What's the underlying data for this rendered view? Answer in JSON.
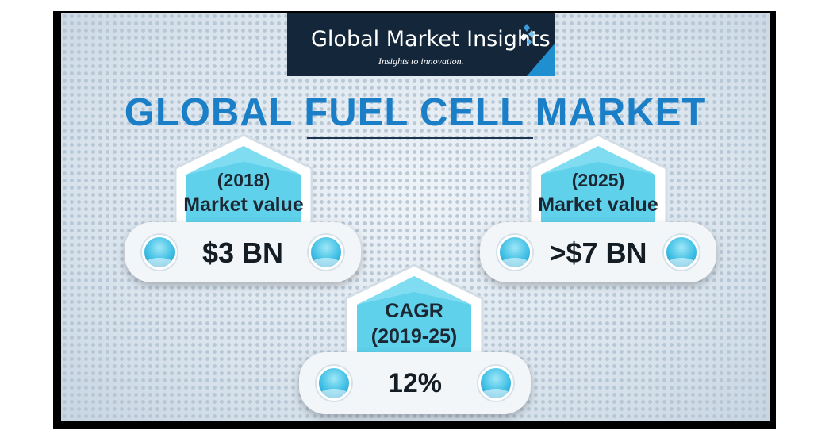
{
  "logo": {
    "brand": "Global Market Insights",
    "tagline": "Insights to innovation.",
    "colors": {
      "bg": "#14263a",
      "accent": "#1f8fd0"
    }
  },
  "title": "GLOBAL FUEL CELL MARKET",
  "cards": [
    {
      "label_line1": "(2018)",
      "label_line2": "Market value",
      "value": "$3 BN"
    },
    {
      "label_line1": "(2025)",
      "label_line2": "Market value",
      "value": ">$7 BN"
    },
    {
      "label_line1": "CAGR",
      "label_line2": "(2019-25)",
      "value": "12%"
    }
  ],
  "colors": {
    "title": "#1a7fc7",
    "badge_fill": "#5fd1ea",
    "badge_dark": "#1c2733"
  }
}
